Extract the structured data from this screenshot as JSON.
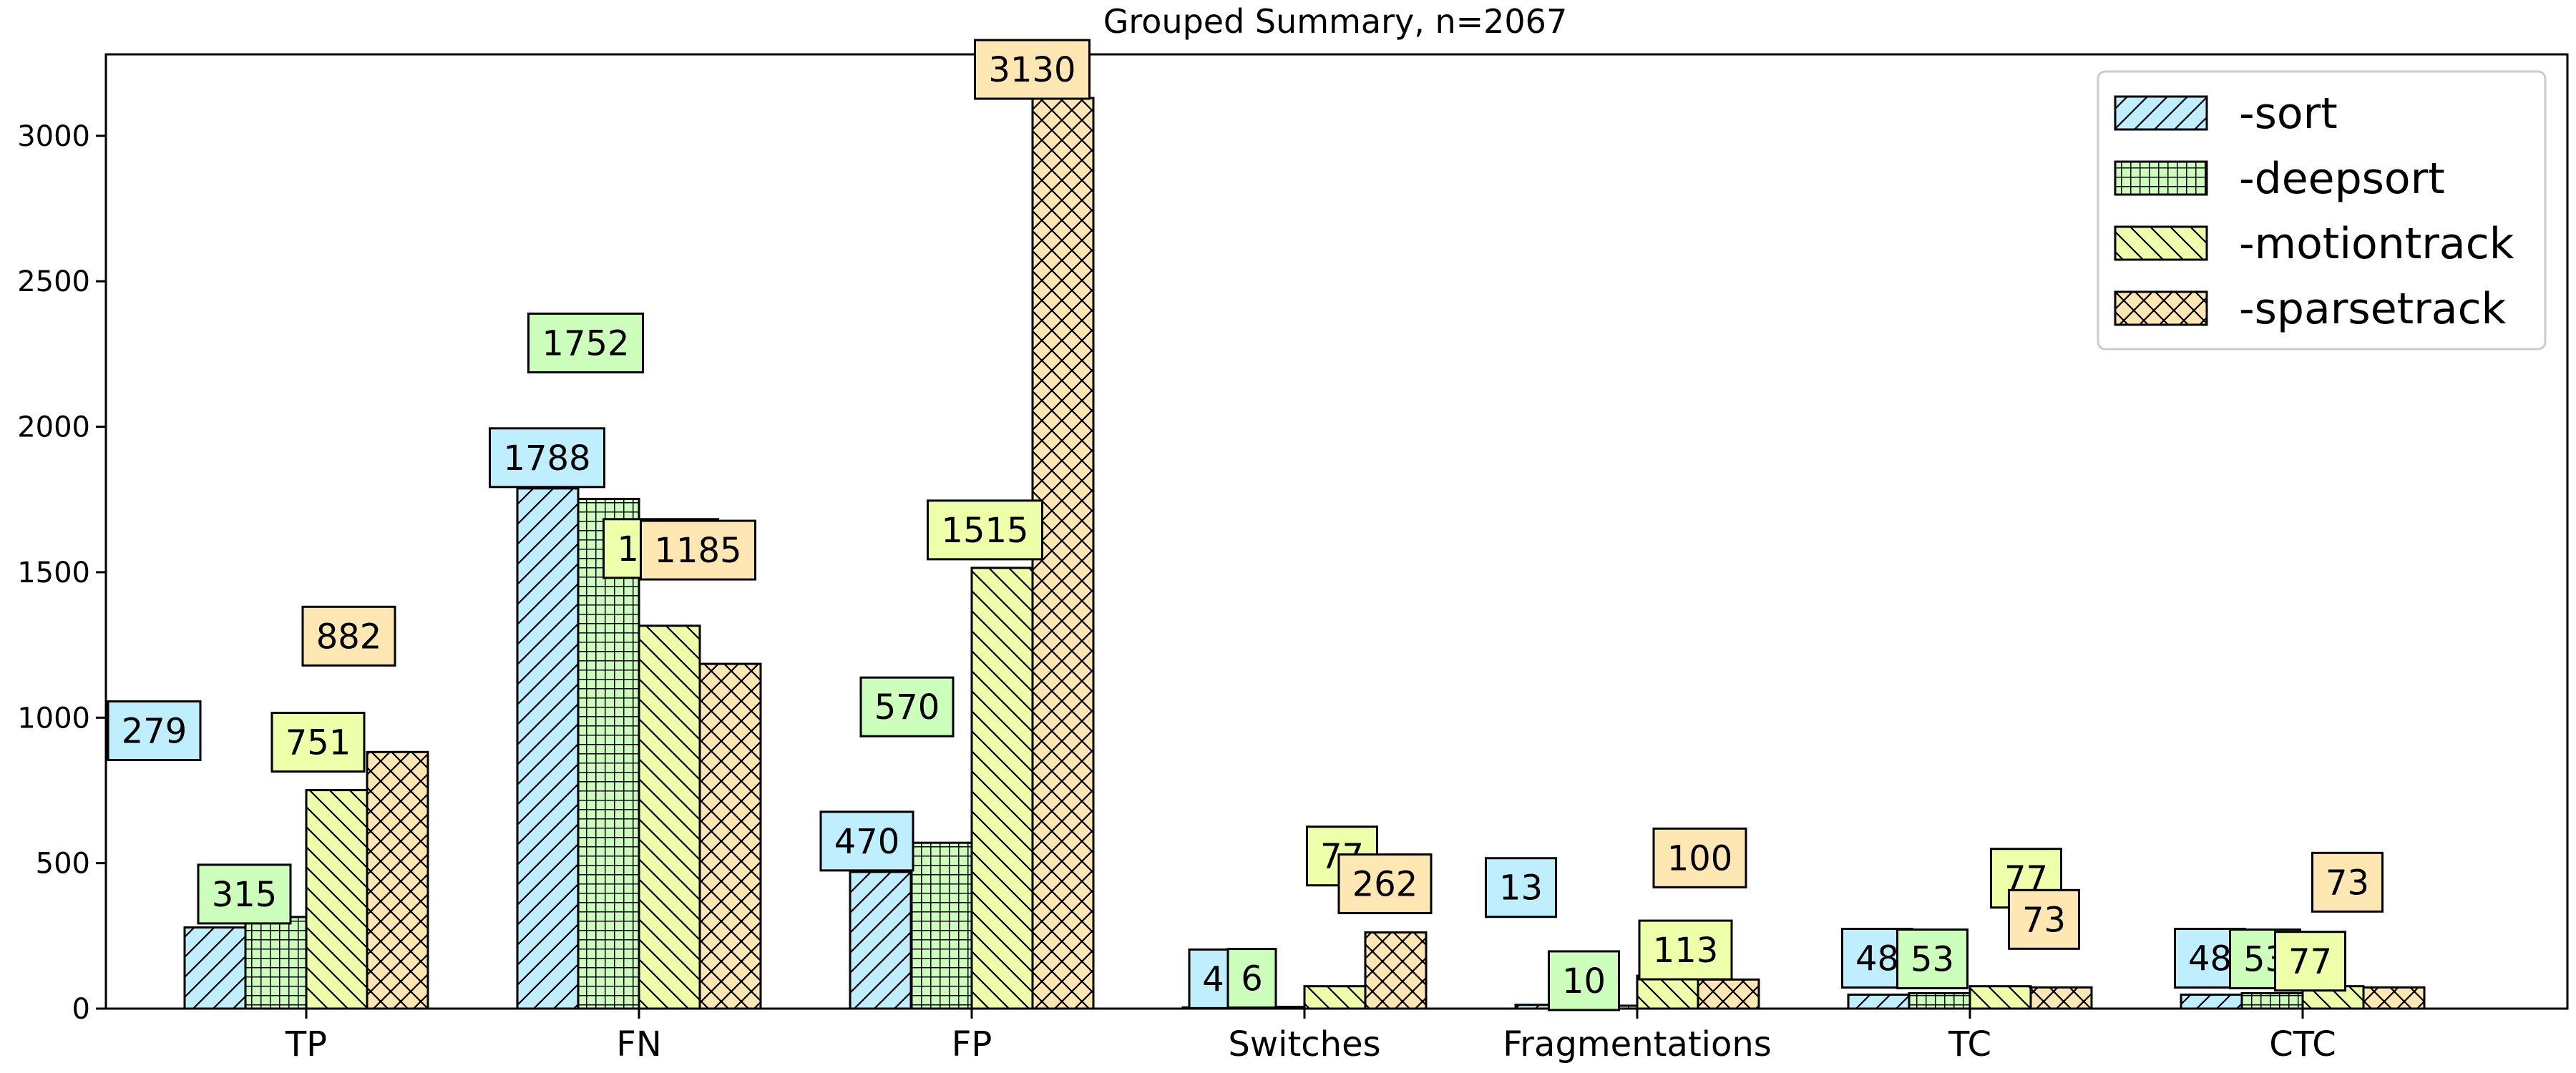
{
  "chart_data": {
    "type": "bar",
    "title": "Grouped Summary, n=2067",
    "xlabel": "",
    "ylabel": "",
    "categories": [
      "TP",
      "FN",
      "FP",
      "Switches",
      "Fragmentations",
      "TC",
      "CTC"
    ],
    "series": [
      {
        "name": "-sort",
        "color": "#bfefff",
        "pattern": "diagonal-forward",
        "values": [
          279,
          1788,
          470,
          4,
          13,
          48,
          48
        ]
      },
      {
        "name": "-deepsort",
        "color": "#ccffbb",
        "pattern": "grid",
        "values": [
          315,
          1752,
          570,
          6,
          10,
          53,
          53
        ]
      },
      {
        "name": "-motiontrack",
        "color": "#eeffaa",
        "pattern": "diagonal-back",
        "values": [
          751,
          1316,
          1515,
          77,
          113,
          77,
          77
        ]
      },
      {
        "name": "-sparsetrack",
        "color": "#ffe7b3",
        "pattern": "crosshatch",
        "values": [
          882,
          1185,
          3130,
          262,
          100,
          73,
          73
        ]
      }
    ],
    "data_labels": [
      [
        "279",
        "1788",
        "470",
        "4",
        "13",
        "48",
        "48"
      ],
      [
        "315",
        "1752",
        "570",
        "6",
        "10",
        "53",
        "53"
      ],
      [
        "751",
        "1316",
        "1515",
        "77",
        "113",
        "77",
        "77"
      ],
      [
        "882",
        "1185",
        "3130",
        "262",
        "100",
        "73",
        "73"
      ]
    ],
    "yticks": [
      0,
      500,
      1000,
      1500,
      2000,
      2500,
      3000
    ],
    "ylim": [
      0,
      3280
    ],
    "grid": false,
    "legend_position": "top-right"
  }
}
